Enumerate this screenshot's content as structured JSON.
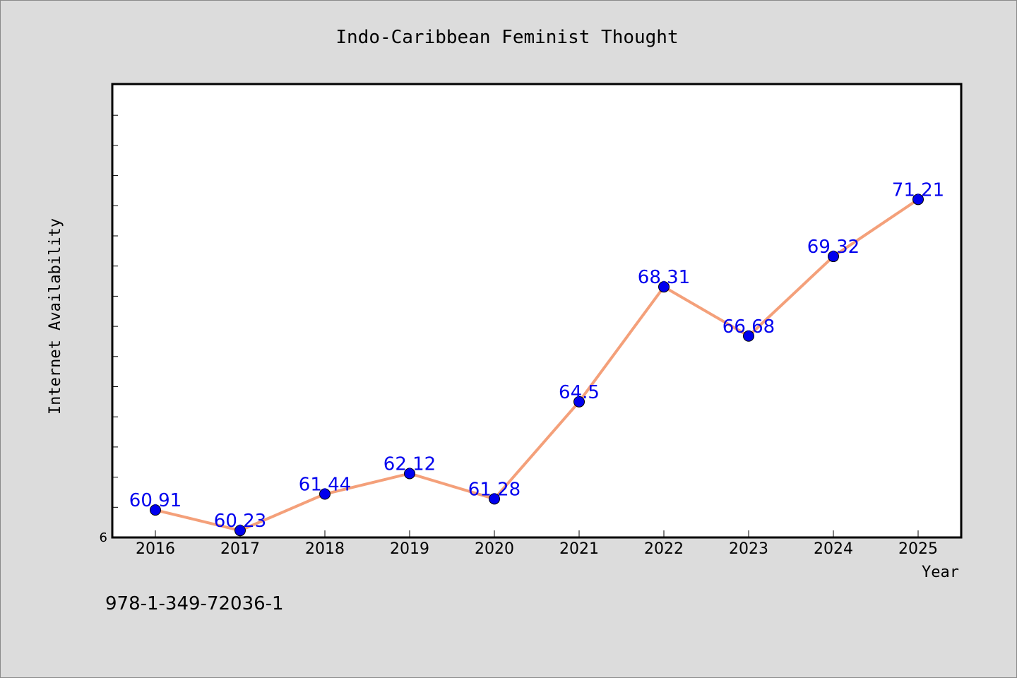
{
  "chart_data": {
    "type": "line",
    "title": "Indo-Caribbean Feminist Thought",
    "xlabel": "Year",
    "ylabel": "Internet Availability",
    "categories": [
      "2016",
      "2017",
      "2018",
      "2019",
      "2020",
      "2021",
      "2022",
      "2023",
      "2024",
      "2025"
    ],
    "series": [
      {
        "values": [
          60.91,
          60.23,
          61.44,
          62.12,
          61.28,
          64.5,
          68.31,
          66.68,
          69.32,
          71.21
        ],
        "labels": [
          "60.91",
          "60.23",
          "61.44",
          "62.12",
          "61.28",
          "64.5",
          "68.31",
          "66.68",
          "69.32",
          "71.21"
        ],
        "line_color": "#f4a07a",
        "marker_color": "#0000ee"
      }
    ],
    "ylim": [
      60,
      75
    ],
    "y_tick_label": "6",
    "y_minor_tick_step": 1,
    "grid": false,
    "legend": "none"
  },
  "footer": {
    "isbn": "978-1-349-72036-1"
  },
  "colors": {
    "background": "#dcdcdc",
    "plot_background": "#ffffff",
    "label_color": "#0000ee"
  }
}
